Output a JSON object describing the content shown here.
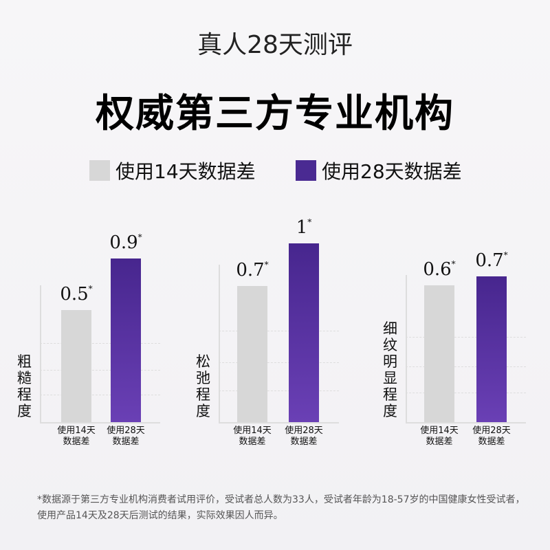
{
  "subtitle": "真人28天测评",
  "title": "权威第三方专业机构",
  "legend": [
    {
      "label": "使用14天数据差",
      "color": "#d7d7d7"
    },
    {
      "label": "使用28天数据差",
      "color": "#4a2a92"
    }
  ],
  "chart_data": [
    {
      "type": "bar",
      "ylabel": "粗糙程度",
      "categories": [
        "使用14天\n数据差",
        "使用28天\n数据差"
      ],
      "values": [
        0.5,
        0.9
      ],
      "value_labels": [
        "0.5",
        "0.9"
      ],
      "grid": true
    },
    {
      "type": "bar",
      "ylabel": "松弛程度",
      "categories": [
        "使用14天\n数据差",
        "使用28天\n数据差"
      ],
      "values": [
        0.7,
        1
      ],
      "value_labels": [
        "0.7",
        "1"
      ],
      "grid": true
    },
    {
      "type": "bar",
      "ylabel": "细纹明显程度",
      "categories": [
        "使用14天\n数据差",
        "使用28天\n数据差"
      ],
      "values": [
        0.6,
        0.7
      ],
      "value_labels": [
        "0.6",
        "0.7"
      ],
      "grid": true
    }
  ],
  "asterisk": "*",
  "footnote": "*数据源于第三方专业机构消费者试用评价，受试者总人数为33人，受试者年龄为18-57岁的中国健康女性受试者，使用产品14天及28天后测试的结果，实际效果因人而异。"
}
